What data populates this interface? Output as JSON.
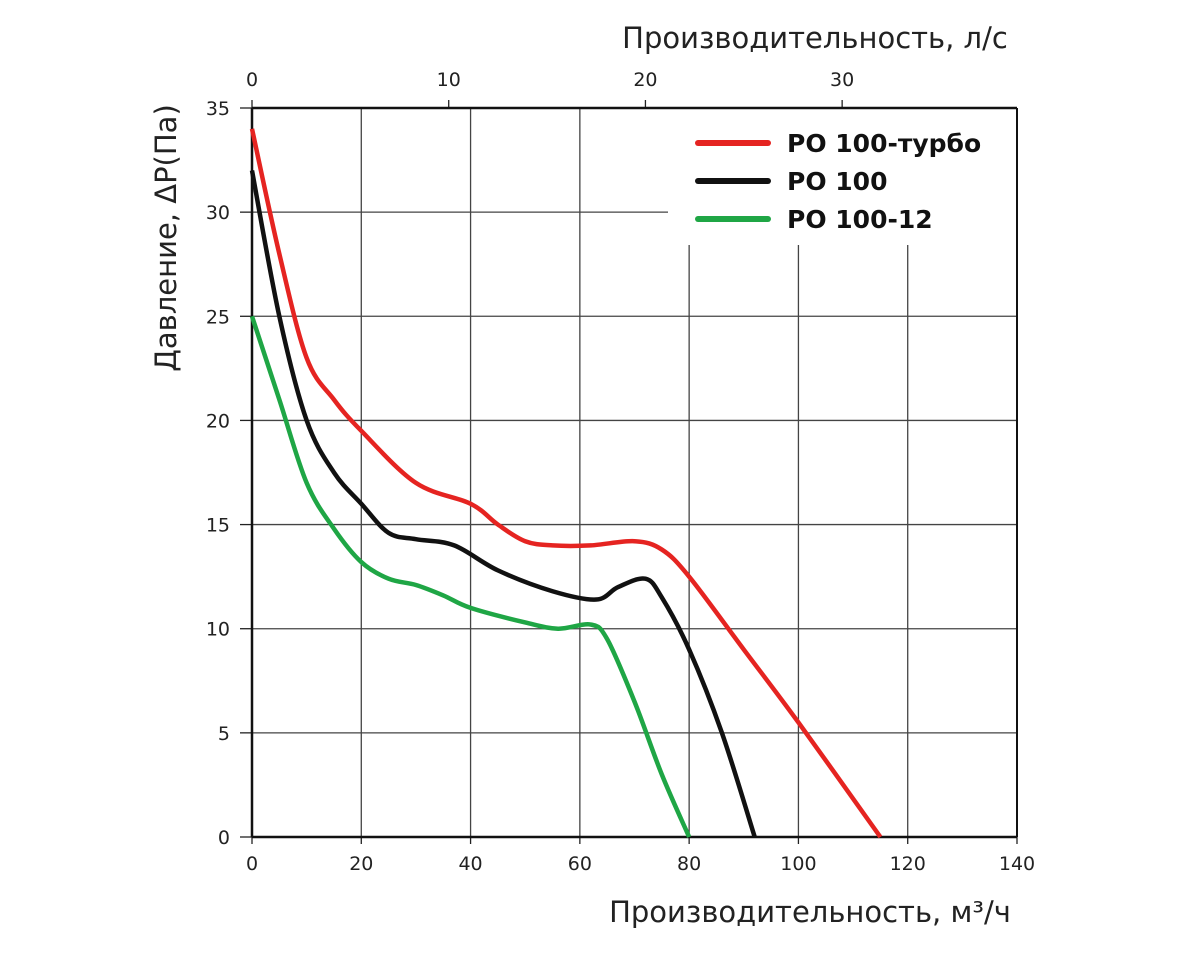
{
  "chart_data": {
    "type": "line",
    "xlabel": "Производительность, м³/ч",
    "xlabel_top": "Производительность, л/с",
    "ylabel": "Давление, ΔP(Па)",
    "xlim": [
      0,
      140
    ],
    "ylim": [
      0,
      35
    ],
    "xticks": [
      0,
      20,
      40,
      60,
      80,
      100,
      120,
      140
    ],
    "xticks_top": [
      0,
      10,
      20,
      30
    ],
    "yticks": [
      0,
      5,
      10,
      15,
      20,
      25,
      30,
      35
    ],
    "grid": true,
    "legend_position": "top-right",
    "series": [
      {
        "name": "PO 100-турбо",
        "color": "#e52421",
        "x": [
          0,
          5,
          10,
          15,
          20,
          30,
          40,
          45,
          50,
          55,
          62,
          70,
          75,
          80,
          90,
          100,
          115
        ],
        "y": [
          34,
          28,
          23,
          21,
          19.5,
          17,
          16,
          15,
          14.2,
          14,
          14,
          14.2,
          13.8,
          12.5,
          9,
          5.5,
          0
        ]
      },
      {
        "name": "PO 100",
        "color": "#111111",
        "x": [
          0,
          5,
          10,
          15,
          20,
          25,
          30,
          37,
          45,
          55,
          63,
          67,
          72,
          75,
          80,
          86,
          92
        ],
        "y": [
          32,
          25,
          20,
          17.5,
          16,
          14.6,
          14.3,
          14,
          12.8,
          11.8,
          11.4,
          12,
          12.4,
          11.5,
          9,
          5,
          0
        ]
      },
      {
        "name": "PO 100-12",
        "color": "#1fa645",
        "x": [
          0,
          5,
          10,
          15,
          20,
          25,
          30,
          35,
          40,
          50,
          56,
          62,
          65,
          70,
          75,
          80
        ],
        "y": [
          25,
          21,
          17,
          14.8,
          13.2,
          12.4,
          12.1,
          11.6,
          11,
          10.3,
          10,
          10.2,
          9.5,
          6.5,
          3,
          0
        ]
      }
    ]
  }
}
